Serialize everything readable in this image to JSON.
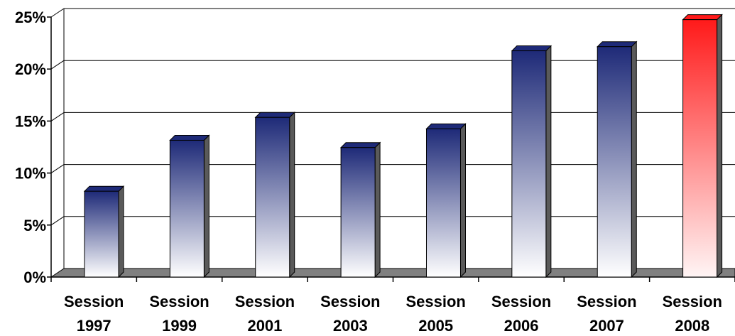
{
  "chart_data": {
    "type": "bar",
    "categories": [
      [
        "Session",
        "1997"
      ],
      [
        "Session",
        "1999"
      ],
      [
        "Session",
        "2001"
      ],
      [
        "Session",
        "2003"
      ],
      [
        "Session",
        "2005"
      ],
      [
        "Session",
        "2006"
      ],
      [
        "Session",
        "2007"
      ],
      [
        "Session",
        "2008"
      ]
    ],
    "values": [
      7.5,
      12.4,
      14.6,
      11.7,
      13.5,
      21.0,
      21.4,
      24.0
    ],
    "unit": "%",
    "ylim": [
      0,
      25
    ],
    "yticks": [
      0,
      5,
      10,
      15,
      20,
      25
    ],
    "ytick_labels": [
      "0%",
      "5%",
      "10%",
      "15%",
      "20%",
      "25%"
    ],
    "grid": true,
    "title": "",
    "xlabel": "",
    "ylabel": "",
    "colors": {
      "default_bar_top": "#1e2a78",
      "default_bar_bottom": "#ffffff",
      "highlight_bar_top": "#ff1a1a",
      "highlight_bar_bottom": "#fff5f5",
      "floor": "#808080",
      "side_shadow": "#5a5a5a",
      "gridline": "#000000"
    },
    "highlight_index": 7
  }
}
